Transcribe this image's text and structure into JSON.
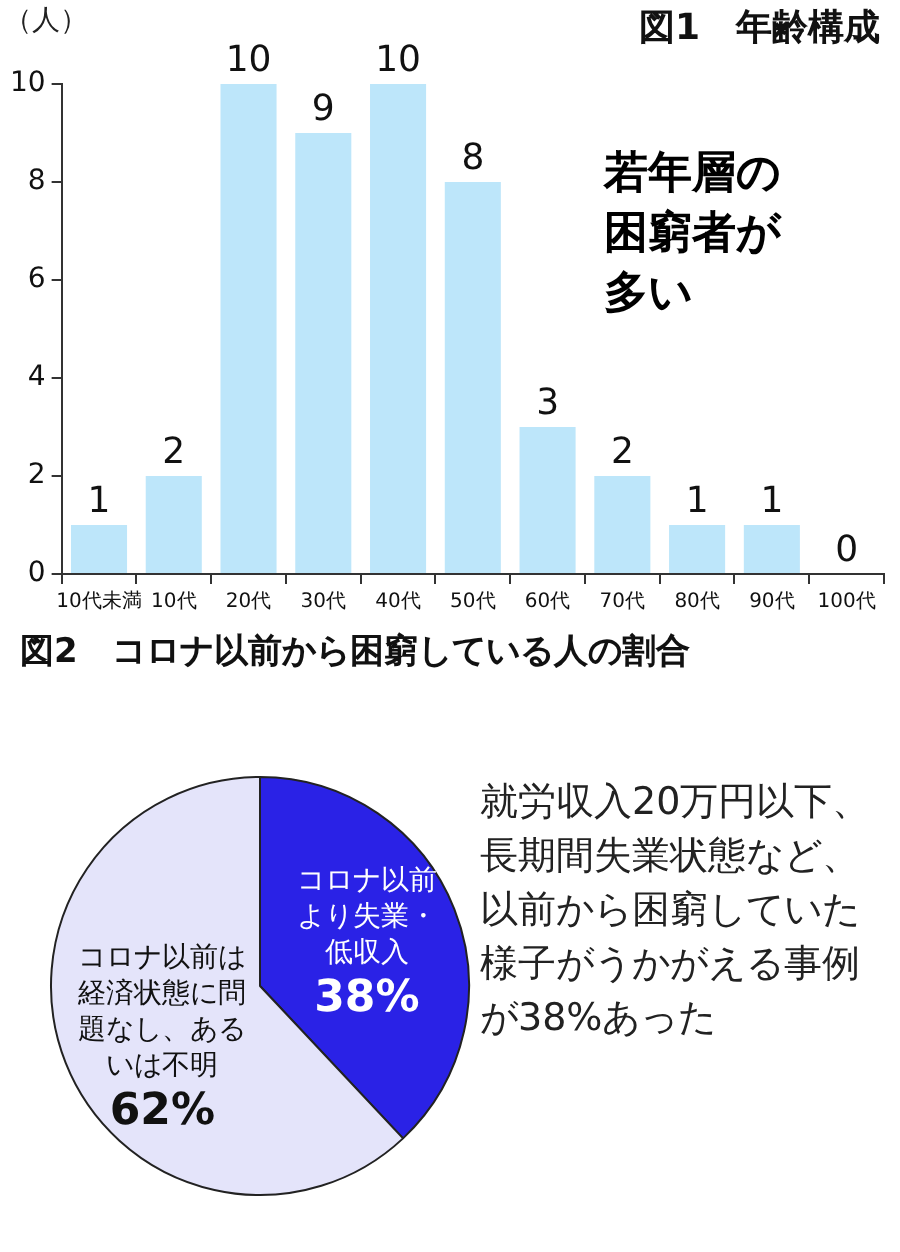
{
  "chart_data": [
    {
      "type": "bar",
      "title": "図1　年齢構成",
      "ylabel": "（人）",
      "categories": [
        "10代未満",
        "10代",
        "20代",
        "30代",
        "40代",
        "50代",
        "60代",
        "70代",
        "80代",
        "90代",
        "100代"
      ],
      "values": [
        1,
        2,
        10,
        9,
        10,
        8,
        3,
        2,
        1,
        1,
        0
      ],
      "color": "#bde6fa",
      "ylim": [
        0,
        10
      ],
      "yticks": [
        0,
        2,
        4,
        6,
        8,
        10
      ],
      "grid": false,
      "legend": false,
      "data_labels": true,
      "annotations": [
        "若年層の困窮者が多い"
      ]
    },
    {
      "type": "pie",
      "title": "図2　コロナ以前から困窮している人の割合",
      "categories": [
        "コロナ以前より失業・低収入",
        "コロナ以前は経済状態に問題なし、あるいは不明"
      ],
      "values": [
        38,
        62
      ],
      "colors": [
        "#2a22e6",
        "#e4e4fa"
      ],
      "value_labels": [
        "38%",
        "62%"
      ],
      "legend": false,
      "annotations": [
        "就労収入20万円以下、長期間失業状態など、以前から困窮していた様子がうかがえる事例が38%あった"
      ]
    }
  ]
}
